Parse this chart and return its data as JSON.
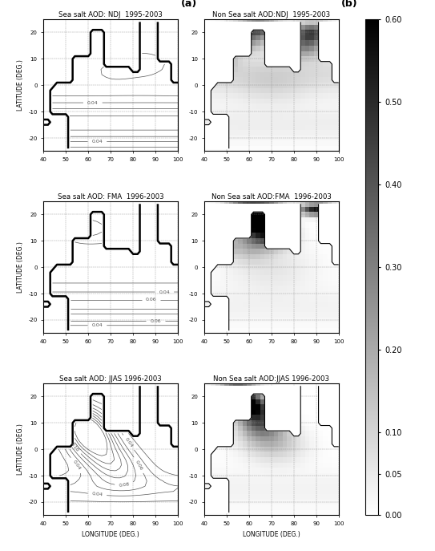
{
  "lon_range": [
    40,
    100
  ],
  "lat_range": [
    -25,
    25
  ],
  "left_titles": [
    "Sea salt AOD: NDJ  1995-2003",
    "Sea salt AOD: FMA  1996-2003",
    "Sea salt AOD: JJAS 1996-2003"
  ],
  "right_titles": [
    "Non Sea salt AOD:NDJ  1995-2003",
    "Non Sea salt AOD:FMA  1996-2003",
    "Non Sea salt AOD:JJAS 1996-2003"
  ],
  "panel_labels": [
    "(a)",
    "(b)"
  ],
  "xlabel": "LONGITUDE (DEG.)",
  "ylabel": "LATITUDE (DEG.)",
  "colorbar_ticks": [
    0.0,
    0.05,
    0.1,
    0.2,
    0.3,
    0.4,
    0.5,
    0.6
  ],
  "colorbar_ticklabels": [
    "0.00",
    "0.05",
    "0.10",
    "0.20",
    "0.30",
    "0.40",
    "0.50",
    "0.60"
  ],
  "nss_vmin": 0.0,
  "nss_vmax": 0.6,
  "xticks": [
    40,
    50,
    60,
    70,
    80,
    90,
    100
  ],
  "yticks": [
    -20,
    -10,
    0,
    10,
    20
  ],
  "ss_contour_levels": [
    0.02,
    0.04,
    0.06,
    0.08,
    0.1,
    0.12,
    0.14,
    0.16,
    0.18,
    0.2
  ]
}
